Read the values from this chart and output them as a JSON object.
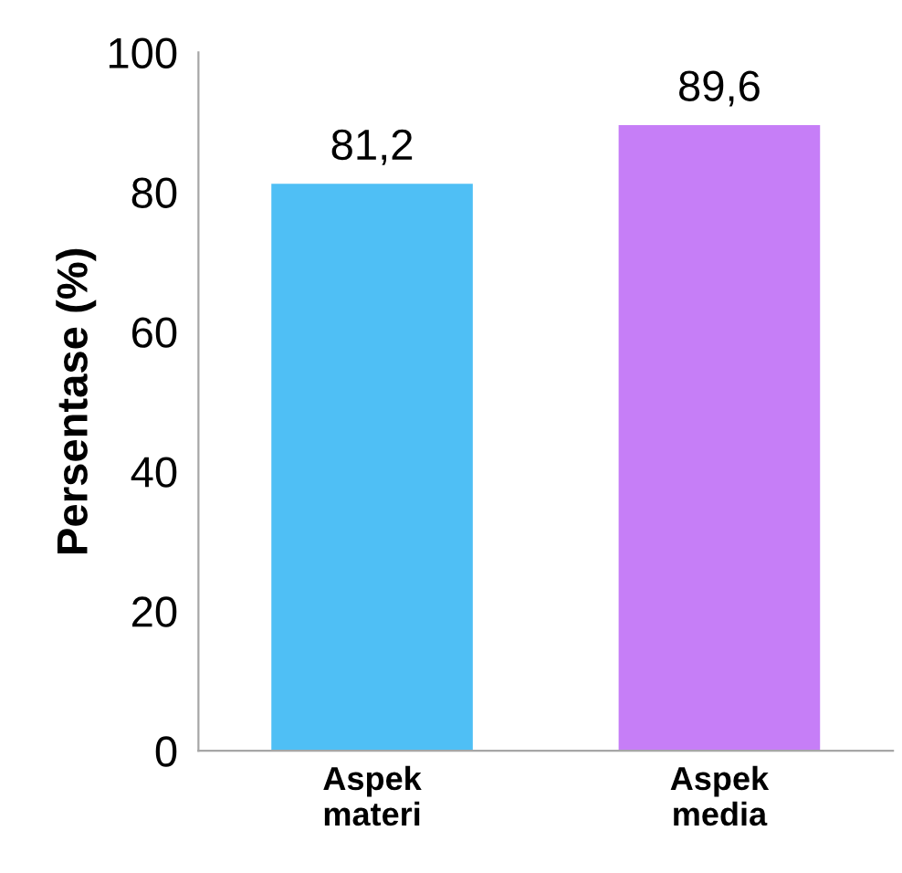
{
  "chart_data": {
    "type": "bar",
    "ylabel": "Persentase (%)",
    "categories": [
      "Aspek\nmateri",
      "Aspek\nmedia"
    ],
    "values": [
      81.2,
      89.6
    ],
    "colors": [
      "#4fbff5",
      "#c67ef7"
    ],
    "value_labels": [
      "81,2",
      "89,6"
    ],
    "ylim": [
      0,
      100
    ],
    "yticks": [
      0,
      20,
      40,
      60,
      80,
      100
    ]
  }
}
